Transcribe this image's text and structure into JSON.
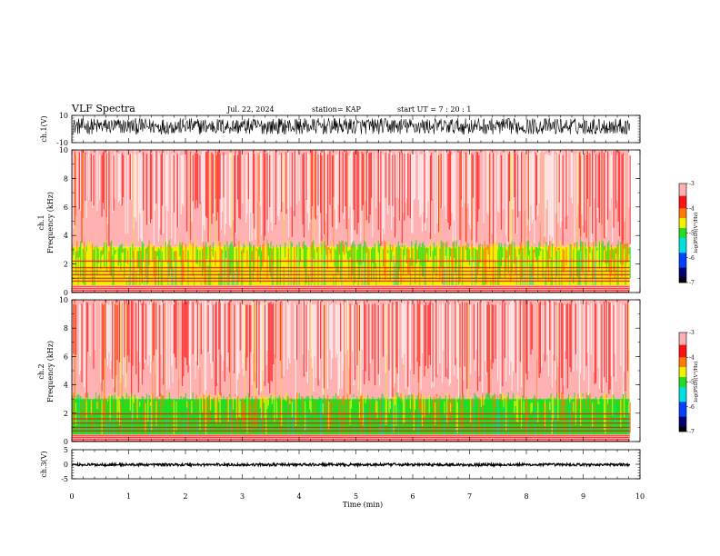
{
  "header": {
    "title": "VLF Spectra",
    "date": "Jul. 22, 2024",
    "station": "station= KAP",
    "start": "start UT =  7 : 20 : 1"
  },
  "colors": {
    "white": "#ffffff",
    "pink": "#ffb0b0",
    "red": "#ff1010",
    "orange": "#ff7a00",
    "yellow": "#f0f000",
    "green": "#22dd22",
    "cyan": "#00e0e0",
    "blue": "#0040ff",
    "navy": "#000070",
    "black": "#000000"
  },
  "chart_data": {
    "type": "heatmap",
    "x": {
      "label": "Time (min)",
      "range": [
        0,
        10
      ],
      "ticks": [
        "0",
        "1",
        "2",
        "3",
        "4",
        "5",
        "6",
        "7",
        "8",
        "9",
        "10"
      ],
      "data_end": 9.82
    },
    "panels": [
      {
        "id": "ch1-waveform",
        "type": "line",
        "ylabel": "ch.1(V)",
        "ylim": [
          -10,
          10
        ],
        "yticks": [
          "10",
          "-10"
        ],
        "typical_range": [
          -4,
          8
        ]
      },
      {
        "id": "ch1-spectrogram",
        "type": "heatmap",
        "ylabel_channel": "ch.1",
        "ylabel": "Frequency (kHz)",
        "ylim": [
          0,
          10
        ],
        "yticks": [
          "0",
          "2",
          "4",
          "6",
          "8",
          "10"
        ],
        "colorbar": {
          "label": "log(PSD)(V²/Hz)",
          "range": [
            -7,
            -3
          ],
          "ticks": [
            "-3",
            "-4",
            "-5",
            "-6",
            "-7"
          ]
        },
        "bands": [
          {
            "freq": [
              3.2,
              10
            ],
            "level": -3.4
          },
          {
            "freq": [
              0.5,
              3.2
            ],
            "level": -4.6
          },
          {
            "freq": [
              0,
              0.5
            ],
            "level": -3.6
          }
        ],
        "lines_khz": [
          2.2,
          1.75,
          1.5,
          1.25,
          1.0,
          0.8
        ]
      },
      {
        "id": "ch2-spectrogram",
        "type": "heatmap",
        "ylabel_channel": "ch.2",
        "ylabel": "Frequency (kHz)",
        "ylim": [
          0,
          10
        ],
        "yticks": [
          "0",
          "2",
          "4",
          "6",
          "8",
          "10"
        ],
        "colorbar": {
          "label": "log(PSD)(V²/Hz)",
          "range": [
            -7,
            -3
          ],
          "ticks": [
            "-3",
            "-4",
            "-5",
            "-6",
            "-7"
          ]
        },
        "bands": [
          {
            "freq": [
              3.0,
              10
            ],
            "level": -3.4
          },
          {
            "freq": [
              0.5,
              3.0
            ],
            "level": -4.9
          },
          {
            "freq": [
              0,
              0.5
            ],
            "level": -3.6
          }
        ],
        "lines_khz": [
          1.95,
          1.6,
          1.3,
          1.0,
          0.75
        ]
      },
      {
        "id": "ch3-waveform",
        "type": "line",
        "ylabel": "ch.3(V)",
        "ylim": [
          -5,
          5
        ],
        "yticks": [
          "5",
          "0",
          "-5"
        ],
        "typical_range": [
          -0.6,
          0.3
        ]
      }
    ]
  }
}
